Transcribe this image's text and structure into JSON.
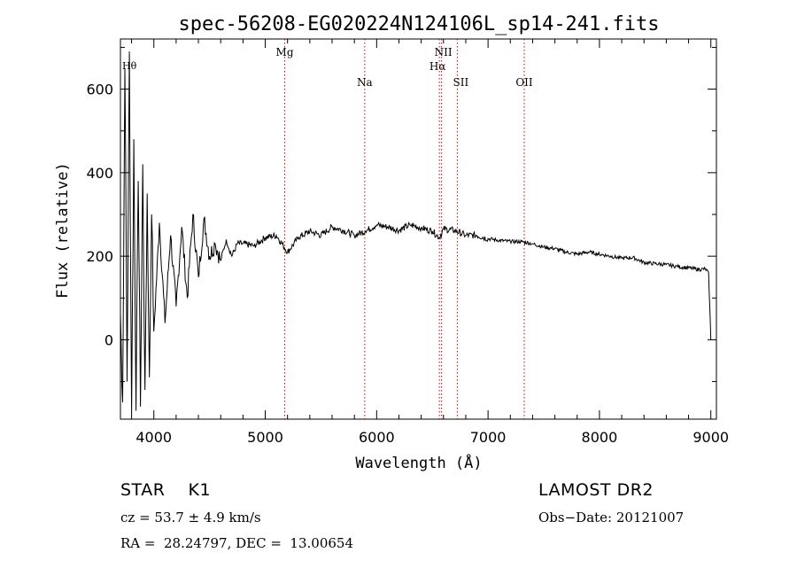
{
  "chart_data": {
    "type": "line",
    "title": "spec-56208-EG020224N124106L_sp14-241.fits",
    "xlabel": "Wavelength (Å)",
    "ylabel": "Flux (relative)",
    "xlim": [
      3700,
      9050
    ],
    "ylim": [
      -190,
      720
    ],
    "x_ticks": [
      4000,
      5000,
      6000,
      7000,
      8000,
      9000
    ],
    "y_ticks": [
      0,
      200,
      400,
      600
    ],
    "grid": false,
    "series": [
      {
        "color": "#000000",
        "x": [
          3700,
          3720,
          3740,
          3760,
          3780,
          3800,
          3820,
          3840,
          3860,
          3880,
          3900,
          3920,
          3940,
          3960,
          3980,
          4000,
          4050,
          4100,
          4150,
          4200,
          4250,
          4300,
          4350,
          4400,
          4450,
          4500,
          4550,
          4600,
          4650,
          4700,
          4750,
          4800,
          4900,
          5000,
          5100,
          5200,
          5300,
          5400,
          5500,
          5600,
          5700,
          5800,
          5900,
          6000,
          6100,
          6200,
          6300,
          6400,
          6500,
          6563,
          6600,
          6700,
          6800,
          6900,
          7000,
          7100,
          7200,
          7300,
          7400,
          7500,
          7600,
          7700,
          7800,
          7900,
          8000,
          8100,
          8200,
          8300,
          8400,
          8500,
          8600,
          8700,
          8800,
          8900,
          8950,
          8980,
          8990,
          9000
        ],
        "y": [
          60,
          -150,
          650,
          -100,
          690,
          -180,
          480,
          -170,
          380,
          -160,
          420,
          -120,
          350,
          -90,
          300,
          20,
          280,
          40,
          250,
          80,
          270,
          100,
          300,
          150,
          290,
          200,
          230,
          190,
          240,
          200,
          230,
          230,
          225,
          245,
          250,
          210,
          245,
          260,
          250,
          270,
          262,
          250,
          260,
          275,
          270,
          262,
          275,
          268,
          260,
          245,
          265,
          262,
          250,
          250,
          242,
          238,
          235,
          235,
          230,
          222,
          218,
          210,
          205,
          210,
          205,
          200,
          195,
          197,
          185,
          182,
          180,
          175,
          172,
          168,
          170,
          160,
          80,
          0
        ]
      }
    ],
    "lines": [
      {
        "label": "Mg",
        "x": 5175
      },
      {
        "label": "Na",
        "x": 5893
      },
      {
        "label": "NII",
        "x": 6583
      },
      {
        "label": "Hα",
        "x": 6563
      },
      {
        "label": "SII",
        "x": 6724
      },
      {
        "label": "OII",
        "x": 7325
      }
    ],
    "edge_label": "Hθ",
    "line_color": "#cc0000"
  },
  "info": {
    "obj_class": "STAR    K1",
    "survey": "LAMOST DR2",
    "cz": "cz = 53.7 ± 4.9 km/s",
    "obs_date": "Obs−Date: 20121007",
    "coords": "RA =  28.24797, DEC =  13.00654"
  }
}
